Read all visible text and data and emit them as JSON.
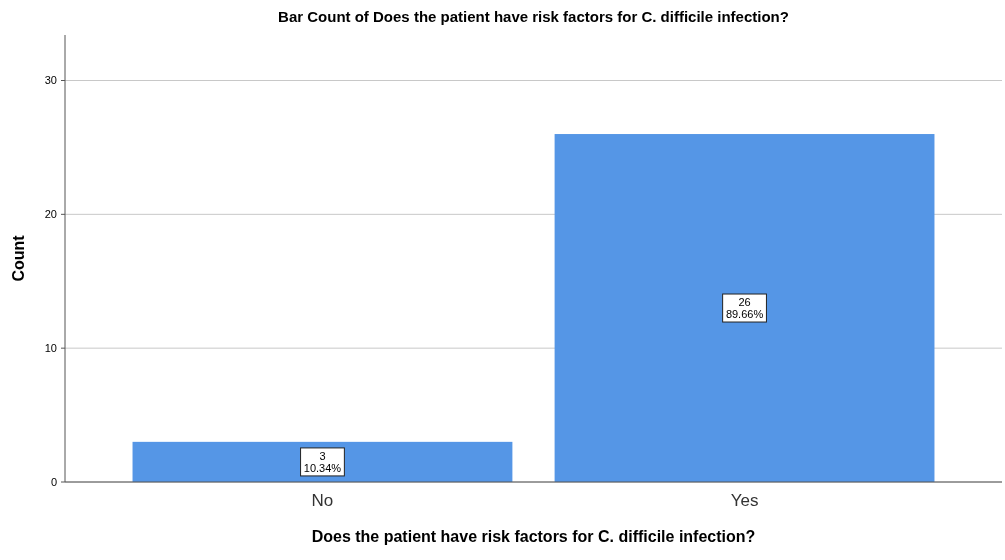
{
  "chart_data": {
    "type": "bar",
    "title": "Bar Count of Does the patient have risk factors for C. difficile infection?",
    "xlabel": "Does the patient have risk factors for C. difficile infection?",
    "ylabel": "Count",
    "categories": [
      "No",
      "Yes"
    ],
    "values": [
      3,
      26
    ],
    "color": "#5596e6",
    "value_labels": [
      "3\n10.34%",
      "26\n89.66%"
    ],
    "ylim": [
      0,
      33.4
    ],
    "yticks": [
      0,
      10,
      20,
      30
    ],
    "grid": "y"
  }
}
